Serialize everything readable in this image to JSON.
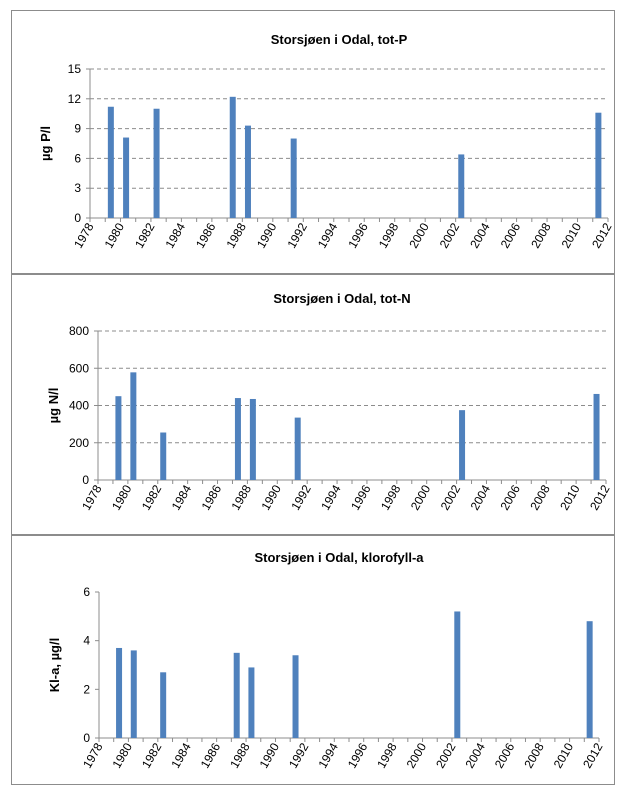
{
  "chart_data": [
    {
      "type": "bar",
      "title": "Storsjøen i Odal, tot-P",
      "ylabel": "µg P/l",
      "xlabel": "",
      "ylim": [
        0,
        15
      ],
      "yticks": [
        0,
        3,
        6,
        9,
        12,
        15
      ],
      "xlim": [
        1978,
        2012
      ],
      "xticks": [
        "1978",
        "1980",
        "1982",
        "1984",
        "1986",
        "1988",
        "1990",
        "1992",
        "1994",
        "1996",
        "1998",
        "2000",
        "2002",
        "2004",
        "2006",
        "2008",
        "2010",
        "2012"
      ],
      "x": [
        1979,
        1980,
        1982,
        1987,
        1988,
        1991,
        2002,
        2011
      ],
      "values": [
        11.2,
        8.1,
        11.0,
        12.2,
        9.3,
        8.0,
        6.4,
        10.6
      ],
      "bar_color": "#4f81bd",
      "grid": "horizontal dashed"
    },
    {
      "type": "bar",
      "title": "Storsjøen i Odal, tot-N",
      "ylabel": "µg N/l",
      "xlabel": "",
      "ylim": [
        0,
        800
      ],
      "yticks": [
        0,
        200,
        400,
        600,
        800
      ],
      "xlim": [
        1978,
        2012
      ],
      "xticks": [
        "1978",
        "1980",
        "1982",
        "1984",
        "1986",
        "1988",
        "1990",
        "1992",
        "1994",
        "1996",
        "1998",
        "2000",
        "2002",
        "2004",
        "2006",
        "2008",
        "2010",
        "2012"
      ],
      "x": [
        1979,
        1980,
        1982,
        1987,
        1988,
        1991,
        2002,
        2011
      ],
      "values": [
        450,
        578,
        255,
        440,
        435,
        335,
        375,
        462
      ],
      "bar_color": "#4f81bd",
      "grid": "horizontal dashed"
    },
    {
      "type": "bar",
      "title": "Storsjøen i Odal, klorofyll-a",
      "ylabel": "Kl-a, µg/l",
      "xlabel": "",
      "ylim": [
        0,
        6
      ],
      "yticks": [
        0,
        2,
        4,
        6
      ],
      "xlim": [
        1978,
        2012
      ],
      "xticks": [
        "1978",
        "1980",
        "1982",
        "1984",
        "1986",
        "1988",
        "1990",
        "1992",
        "1994",
        "1996",
        "1998",
        "2000",
        "2002",
        "2004",
        "2006",
        "2008",
        "2010",
        "2012"
      ],
      "x": [
        1979,
        1980,
        1982,
        1987,
        1988,
        1991,
        2002,
        2011
      ],
      "values": [
        3.7,
        3.6,
        2.7,
        3.5,
        2.9,
        3.4,
        5.2,
        4.8
      ],
      "bar_color": "#4f81bd",
      "grid": "none"
    }
  ]
}
